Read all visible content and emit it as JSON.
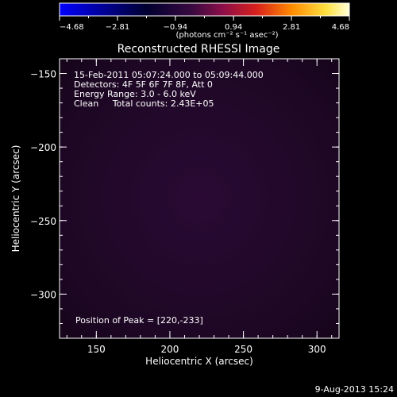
{
  "colorbar": {
    "ticks": [
      "-4.68",
      "-2.81",
      "-0.94",
      "0.94",
      "2.81",
      "4.68"
    ],
    "unit_label": "(photons cm⁻² s⁻¹ asec⁻²)"
  },
  "footer": {
    "date": "9-Aug-2013 15:24"
  },
  "chart_data": {
    "type": "heatmap",
    "title": "Reconstructed RHESSI Image",
    "xlabel": "Heliocentric X (arcsec)",
    "ylabel": "Heliocentric Y (arcsec)",
    "xlim": [
      125,
      315
    ],
    "ylim": [
      -330,
      -140
    ],
    "x_ticks": [
      "150",
      "200",
      "250",
      "300"
    ],
    "y_ticks": [
      "-150",
      "-200",
      "-250",
      "-300"
    ],
    "colorbar_range": [
      -4.68,
      4.68
    ],
    "annotations": [
      "15-Feb-2011 05:07:24.000 to 05:09:44.000",
      "Detectors: 4F 5F 6F 7F 8F, Att 0",
      "Energy Range: 3.0 - 6.0 keV",
      "Clean     Total counts: 2.43E+05"
    ],
    "peak_label": "Position of Peak = [220,-233]",
    "peak": [
      220,
      -233
    ]
  }
}
